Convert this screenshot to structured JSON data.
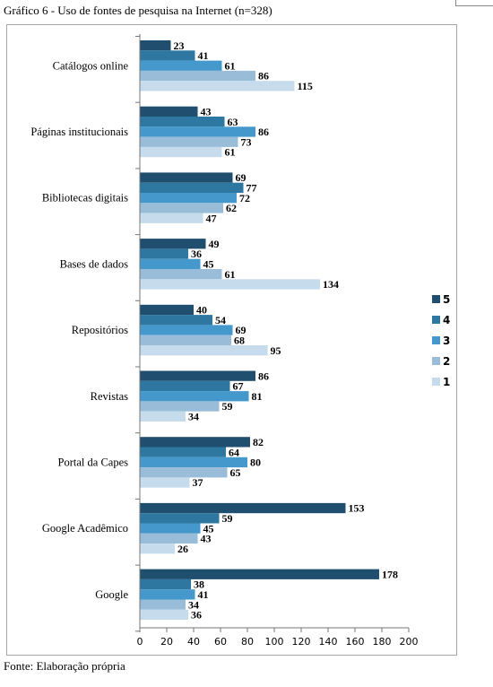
{
  "title": "Gráfico 6 - Uso de fontes de pesquisa na Internet (n=328)",
  "source": "Fonte: Elaboração própria",
  "chart_data": {
    "type": "bar",
    "orientation": "horizontal",
    "title": "Gráfico 6 - Uso de fontes de pesquisa na Internet (n=328)",
    "categories": [
      "Catálogos online",
      "Páginas institucionais",
      "Bibliotecas digitais",
      "Bases de dados",
      "Repositórios",
      "Revistas",
      "Portal da Capes",
      "Google Acadêmico",
      "Google"
    ],
    "series": [
      {
        "name": "5",
        "color": "#1f4e6f",
        "values": [
          23,
          43,
          69,
          49,
          40,
          86,
          82,
          153,
          178
        ]
      },
      {
        "name": "4",
        "color": "#2e77a0",
        "values": [
          41,
          63,
          77,
          36,
          54,
          67,
          64,
          59,
          38
        ]
      },
      {
        "name": "3",
        "color": "#4598cc",
        "values": [
          61,
          86,
          72,
          45,
          69,
          81,
          80,
          45,
          41
        ]
      },
      {
        "name": "2",
        "color": "#99bdd9",
        "values": [
          86,
          73,
          62,
          61,
          68,
          59,
          65,
          43,
          34
        ]
      },
      {
        "name": "1",
        "color": "#c6dcec",
        "values": [
          115,
          61,
          47,
          134,
          95,
          34,
          37,
          26,
          36
        ]
      }
    ],
    "xlim": [
      0,
      200
    ],
    "xticks": [
      0,
      20,
      40,
      60,
      80,
      100,
      120,
      140,
      160,
      180,
      200
    ],
    "grid": false,
    "legend": "right",
    "legend_order": [
      "5",
      "4",
      "3",
      "2",
      "1"
    ]
  }
}
